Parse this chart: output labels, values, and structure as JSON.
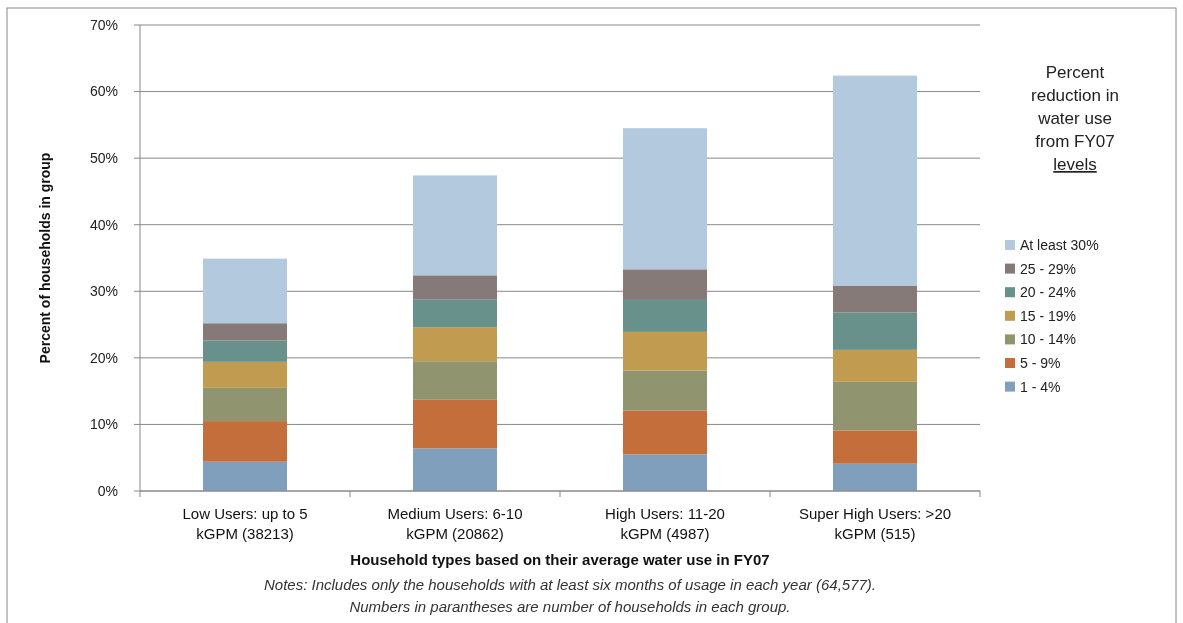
{
  "chart_data": {
    "type": "bar",
    "stacked": true,
    "xlabel": "Household types based on their average water use in FY07",
    "ylabel": "Percent of households in group",
    "legend_title": "Percent reduction in water use from FY07 levels",
    "categories": [
      "Low Users: up to 5 kGPM (38213)",
      "Medium Users: 6-10 kGPM (20862)",
      "High Users: 11-20 kGPM (4987)",
      "Super High Users: >20 kGPM (515)"
    ],
    "series": [
      {
        "name": "1 - 4%",
        "color": "#7f9fbc",
        "values": [
          4.4,
          6.4,
          5.5,
          4.1
        ]
      },
      {
        "name": "5 - 9%",
        "color": "#c46f3b",
        "values": [
          6.1,
          7.3,
          6.6,
          5.0
        ]
      },
      {
        "name": "10 - 14%",
        "color": "#91956f",
        "values": [
          5.0,
          5.8,
          6.0,
          7.3
        ]
      },
      {
        "name": "15 - 19%",
        "color": "#c09b50",
        "values": [
          3.9,
          5.1,
          5.8,
          4.8
        ]
      },
      {
        "name": "20 - 24%",
        "color": "#67918a",
        "values": [
          3.2,
          4.2,
          4.8,
          5.6
        ]
      },
      {
        "name": "25 - 29%",
        "color": "#857a78",
        "values": [
          2.6,
          3.6,
          4.6,
          4.0
        ]
      },
      {
        "name": "At least 30%",
        "color": "#b3c9de",
        "values": [
          9.7,
          15.0,
          21.2,
          31.6
        ]
      }
    ],
    "ylim": [
      0,
      70
    ],
    "yticks": [
      {
        "value": 0,
        "label": "0%"
      },
      {
        "value": 10,
        "label": "10%"
      },
      {
        "value": 20,
        "label": "20%"
      },
      {
        "value": 30,
        "label": "30%"
      },
      {
        "value": 40,
        "label": "40%"
      },
      {
        "value": 50,
        "label": "50%"
      },
      {
        "value": 60,
        "label": "60%"
      },
      {
        "value": 70,
        "label": "70%"
      }
    ],
    "grid": "y",
    "legend": "right",
    "annotations": [
      "Notes: Includes  only the households with at least six months of usage in each year (64,577).",
      "Numbers in parantheses are number of households in each group."
    ]
  }
}
